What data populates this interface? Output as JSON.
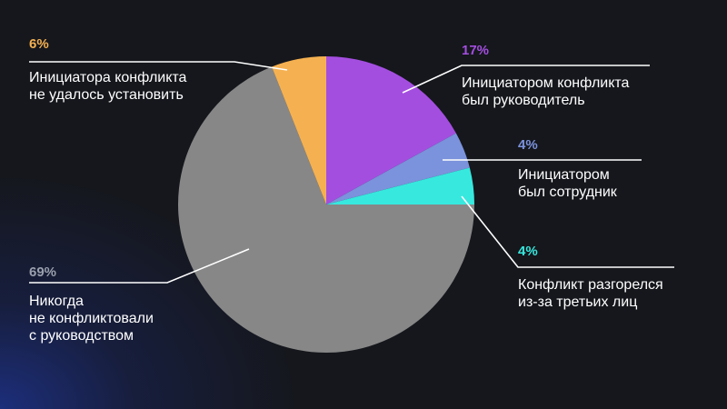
{
  "chart_data": {
    "type": "pie",
    "slices": [
      {
        "value": 17,
        "label": "17%",
        "text": [
          "Инициатором конфликта",
          "был руководитель"
        ],
        "color": "#a44ee0"
      },
      {
        "value": 4,
        "label": "4%",
        "text": [
          "Инициатором",
          "был сотрудник"
        ],
        "color": "#7b92dc"
      },
      {
        "value": 4,
        "label": "4%",
        "text": [
          "Конфликт разгорелся",
          "из-за третьих лиц"
        ],
        "color": "#37e8de"
      },
      {
        "value": 69,
        "label": "69%",
        "text": [
          "Никогда",
          "не конфликтовали",
          "с руководством"
        ],
        "color": "#878787"
      },
      {
        "value": 6,
        "label": "6%",
        "text": [
          "Инициатора конфликта",
          "не удалось установить"
        ],
        "color": "#f5b151"
      }
    ],
    "pct_colors": [
      "#a44ee0",
      "#7b92dc",
      "#37e8de",
      "#9aa0ad",
      "#f5b151"
    ]
  }
}
